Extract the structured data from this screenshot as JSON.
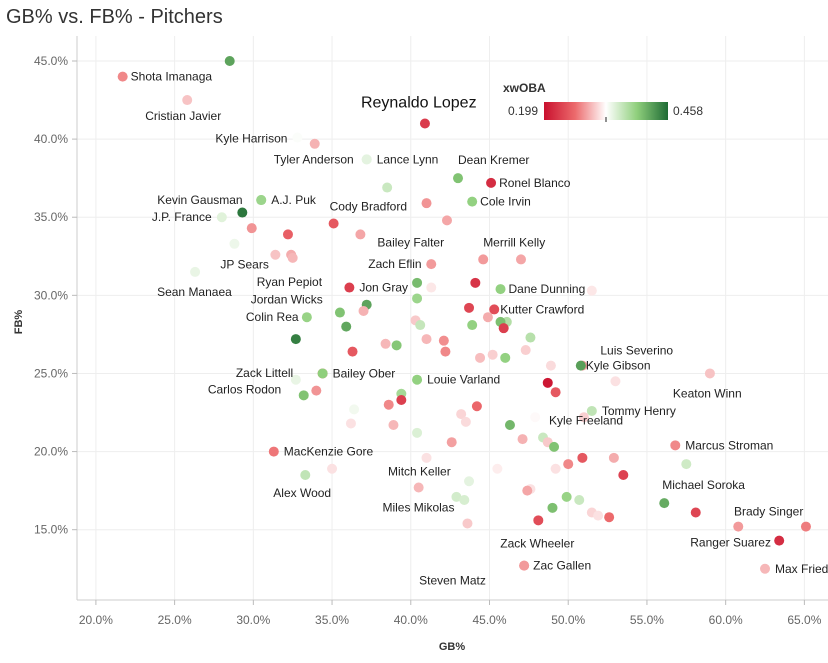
{
  "chart_data": {
    "type": "scatter",
    "title": "GB% vs. FB% - Pitchers",
    "xlabel": "GB%",
    "ylabel": "FB%",
    "xlim": [
      18.8,
      66.5
    ],
    "ylim": [
      10.5,
      46.6
    ],
    "x_ticks": [
      "20.0%",
      "25.0%",
      "30.0%",
      "35.0%",
      "40.0%",
      "45.0%",
      "50.0%",
      "55.0%",
      "60.0%",
      "65.0%"
    ],
    "x_tick_values": [
      20,
      25,
      30,
      35,
      40,
      45,
      50,
      55,
      60,
      65
    ],
    "y_ticks": [
      "15.0%",
      "20.0%",
      "25.0%",
      "30.0%",
      "35.0%",
      "40.0%",
      "45.0%"
    ],
    "y_tick_values": [
      15,
      20,
      25,
      30,
      35,
      40,
      45
    ],
    "legend": {
      "title": "xwOBA",
      "min_label": "0.199",
      "max_label": "0.458",
      "min": 0.199,
      "max": 0.458
    },
    "colors": {
      "low": "#c9102e",
      "mid": "#ffffff",
      "high": "#1e6b34",
      "grid": "#eeeeee"
    },
    "points": [
      {
        "x": 28.5,
        "y": 45.0,
        "t": 0.86,
        "name": "",
        "ldx": 0,
        "ldy": 0
      },
      {
        "x": 21.7,
        "y": 44.0,
        "t": 0.3,
        "name": "Shota Imanaga",
        "ldx": 8,
        "ldy": 4
      },
      {
        "x": 25.8,
        "y": 42.5,
        "t": 0.4,
        "name": "Cristian Javier",
        "ldx": -42,
        "ldy": 20
      },
      {
        "x": 40.9,
        "y": 41.0,
        "t": 0.12,
        "name": "Reynaldo Lopez",
        "ldx": -64,
        "ldy": -16,
        "big": true
      },
      {
        "x": 32.8,
        "y": 40.1,
        "t": 0.51,
        "name": "Kyle Harrison",
        "ldx": -82,
        "ldy": 5
      },
      {
        "x": 33.9,
        "y": 39.7,
        "t": 0.37,
        "name": "",
        "ldx": 0,
        "ldy": 0
      },
      {
        "x": 37.2,
        "y": 38.7,
        "t": 0.56,
        "name": "Tyler Anderson",
        "ldx": -93,
        "ldy": 4
      },
      {
        "x": 37.2,
        "y": 38.7,
        "t": 0.56,
        "name": "Lance Lynn",
        "ldx": 10,
        "ldy": 4
      },
      {
        "x": 43.0,
        "y": 37.5,
        "t": 0.78,
        "name": "Dean Kremer",
        "ldx": 0,
        "ldy": -14
      },
      {
        "x": 45.1,
        "y": 37.2,
        "t": 0.08,
        "name": "Ronel Blanco",
        "ldx": 8,
        "ldy": 4
      },
      {
        "x": 38.5,
        "y": 36.9,
        "t": 0.62,
        "name": "",
        "ldx": 0,
        "ldy": 0
      },
      {
        "x": 30.5,
        "y": 36.1,
        "t": 0.72,
        "name": "Kevin Gausman",
        "ldx": -104,
        "ldy": 4
      },
      {
        "x": 30.5,
        "y": 36.1,
        "t": 0.72,
        "name": "A.J. Puk",
        "ldx": 10,
        "ldy": 4
      },
      {
        "x": 41.0,
        "y": 35.9,
        "t": 0.32,
        "name": "",
        "ldx": 0,
        "ldy": 0
      },
      {
        "x": 43.9,
        "y": 36.0,
        "t": 0.74,
        "name": "Cole Irvin",
        "ldx": 8,
        "ldy": 4
      },
      {
        "x": 29.3,
        "y": 35.3,
        "t": 0.97,
        "name": "",
        "ldx": 0,
        "ldy": 0
      },
      {
        "x": 28.0,
        "y": 35.0,
        "t": 0.57,
        "name": "J.P. France",
        "ldx": -70,
        "ldy": 4
      },
      {
        "x": 35.1,
        "y": 34.6,
        "t": 0.2,
        "name": "Cody Bradford",
        "ldx": -4,
        "ldy": -13
      },
      {
        "x": 29.9,
        "y": 34.3,
        "t": 0.32,
        "name": "",
        "ldx": 0,
        "ldy": 0
      },
      {
        "x": 42.3,
        "y": 34.8,
        "t": 0.35,
        "name": "",
        "ldx": 0,
        "ldy": 0
      },
      {
        "x": 32.2,
        "y": 33.9,
        "t": 0.22,
        "name": "",
        "ldx": 0,
        "ldy": 0
      },
      {
        "x": 36.8,
        "y": 33.9,
        "t": 0.35,
        "name": "Bailey Falter",
        "ldx": 17,
        "ldy": 12
      },
      {
        "x": 28.8,
        "y": 33.3,
        "t": 0.54,
        "name": "",
        "ldx": 0,
        "ldy": 0
      },
      {
        "x": 31.4,
        "y": 32.6,
        "t": 0.4,
        "name": "JP Sears",
        "ldx": -55,
        "ldy": 14
      },
      {
        "x": 32.4,
        "y": 32.6,
        "t": 0.36,
        "name": "",
        "ldx": 0,
        "ldy": 0
      },
      {
        "x": 32.5,
        "y": 32.4,
        "t": 0.38,
        "name": "Ryan Pepiot",
        "ldx": -36,
        "ldy": 28
      },
      {
        "x": 44.6,
        "y": 32.3,
        "t": 0.33,
        "name": "Merrill Kelly",
        "ldx": 0,
        "ldy": -13
      },
      {
        "x": 47.0,
        "y": 32.3,
        "t": 0.35,
        "name": "",
        "ldx": 0,
        "ldy": 0
      },
      {
        "x": 41.3,
        "y": 32.0,
        "t": 0.33,
        "name": "Zach Eflin",
        "ldx": -63,
        "ldy": 4
      },
      {
        "x": 26.3,
        "y": 31.5,
        "t": 0.55,
        "name": "Sean Manaea",
        "ldx": -38,
        "ldy": 24
      },
      {
        "x": 40.4,
        "y": 30.8,
        "t": 0.8,
        "name": "",
        "ldx": 0,
        "ldy": 0
      },
      {
        "x": 44.1,
        "y": 30.8,
        "t": 0.1,
        "name": "",
        "ldx": 0,
        "ldy": 0
      },
      {
        "x": 36.1,
        "y": 30.5,
        "t": 0.13,
        "name": "Jon Gray",
        "ldx": 10,
        "ldy": 4
      },
      {
        "x": 41.3,
        "y": 30.5,
        "t": 0.46,
        "name": "",
        "ldx": 0,
        "ldy": 0
      },
      {
        "x": 45.7,
        "y": 30.4,
        "t": 0.74,
        "name": "Dane Dunning",
        "ldx": 8,
        "ldy": 4
      },
      {
        "x": 51.5,
        "y": 30.3,
        "t": 0.46,
        "name": "",
        "ldx": 0,
        "ldy": 0
      },
      {
        "x": 40.4,
        "y": 29.8,
        "t": 0.72,
        "name": "",
        "ldx": 0,
        "ldy": 0
      },
      {
        "x": 37.2,
        "y": 29.4,
        "t": 0.86,
        "name": "Jordan Wicks",
        "ldx": -116,
        "ldy": -1
      },
      {
        "x": 43.7,
        "y": 29.2,
        "t": 0.15,
        "name": "",
        "ldx": 0,
        "ldy": 0
      },
      {
        "x": 45.3,
        "y": 29.1,
        "t": 0.17,
        "name": "Kutter Crawford",
        "ldx": 6,
        "ldy": 4
      },
      {
        "x": 37.0,
        "y": 29.0,
        "t": 0.37,
        "name": "",
        "ldx": 0,
        "ldy": 0
      },
      {
        "x": 35.5,
        "y": 28.9,
        "t": 0.78,
        "name": "",
        "ldx": 0,
        "ldy": 0
      },
      {
        "x": 33.4,
        "y": 28.6,
        "t": 0.73,
        "name": "Colin Rea",
        "ldx": -61,
        "ldy": 4
      },
      {
        "x": 44.9,
        "y": 28.6,
        "t": 0.36,
        "name": "",
        "ldx": 0,
        "ldy": 0
      },
      {
        "x": 40.3,
        "y": 28.4,
        "t": 0.41,
        "name": "",
        "ldx": 0,
        "ldy": 0
      },
      {
        "x": 46.1,
        "y": 28.3,
        "t": 0.67,
        "name": "",
        "ldx": 0,
        "ldy": 0
      },
      {
        "x": 45.7,
        "y": 28.3,
        "t": 0.79,
        "name": "",
        "ldx": 0,
        "ldy": 0
      },
      {
        "x": 40.6,
        "y": 28.1,
        "t": 0.63,
        "name": "",
        "ldx": 0,
        "ldy": 0
      },
      {
        "x": 43.9,
        "y": 28.1,
        "t": 0.74,
        "name": "",
        "ldx": 0,
        "ldy": 0
      },
      {
        "x": 35.9,
        "y": 28.0,
        "t": 0.85,
        "name": "",
        "ldx": 0,
        "ldy": 0
      },
      {
        "x": 45.9,
        "y": 27.9,
        "t": 0.13,
        "name": "",
        "ldx": 0,
        "ldy": 0
      },
      {
        "x": 47.6,
        "y": 27.3,
        "t": 0.66,
        "name": "",
        "ldx": 0,
        "ldy": 0
      },
      {
        "x": 32.7,
        "y": 27.2,
        "t": 0.95,
        "name": "Zack Littell",
        "ldx": -60,
        "ldy": 38
      },
      {
        "x": 41.0,
        "y": 27.2,
        "t": 0.38,
        "name": "",
        "ldx": 0,
        "ldy": 0
      },
      {
        "x": 42.1,
        "y": 27.1,
        "t": 0.31,
        "name": "",
        "ldx": 0,
        "ldy": 0
      },
      {
        "x": 39.1,
        "y": 26.8,
        "t": 0.77,
        "name": "",
        "ldx": 0,
        "ldy": 0
      },
      {
        "x": 38.4,
        "y": 26.9,
        "t": 0.38,
        "name": "",
        "ldx": 0,
        "ldy": 0
      },
      {
        "x": 47.3,
        "y": 26.5,
        "t": 0.42,
        "name": "",
        "ldx": 0,
        "ldy": 0
      },
      {
        "x": 36.3,
        "y": 26.4,
        "t": 0.2,
        "name": "",
        "ldx": 0,
        "ldy": 0
      },
      {
        "x": 42.2,
        "y": 26.4,
        "t": 0.3,
        "name": "",
        "ldx": 0,
        "ldy": 0
      },
      {
        "x": 45.2,
        "y": 26.2,
        "t": 0.42,
        "name": "",
        "ldx": 0,
        "ldy": 0
      },
      {
        "x": 44.4,
        "y": 26.0,
        "t": 0.39,
        "name": "",
        "ldx": 0,
        "ldy": 0
      },
      {
        "x": 46.0,
        "y": 26.0,
        "t": 0.74,
        "name": "",
        "ldx": 0,
        "ldy": 0
      },
      {
        "x": 50.9,
        "y": 25.5,
        "t": 0.33,
        "name": "Luis Severino",
        "ldx": 18,
        "ldy": -11
      },
      {
        "x": 48.9,
        "y": 25.5,
        "t": 0.44,
        "name": "",
        "ldx": 0,
        "ldy": 0
      },
      {
        "x": 50.8,
        "y": 25.5,
        "t": 0.87,
        "name": "Kyle Gibson",
        "ldx": 5,
        "ldy": 4
      },
      {
        "x": 59.0,
        "y": 25.0,
        "t": 0.4,
        "name": "Keaton Winn",
        "ldx": -37,
        "ldy": 24
      },
      {
        "x": 32.7,
        "y": 24.6,
        "t": 0.55,
        "name": "Carlos Rodon",
        "ldx": -88,
        "ldy": 14
      },
      {
        "x": 34.4,
        "y": 25.0,
        "t": 0.21,
        "name": "",
        "ldx": 0,
        "ldy": 0
      },
      {
        "x": 34.4,
        "y": 25.0,
        "t": 0.75,
        "name": "Bailey Ober",
        "ldx": 10,
        "ldy": 4
      },
      {
        "x": 40.4,
        "y": 24.6,
        "t": 0.74,
        "name": "Louie Varland",
        "ldx": 10,
        "ldy": 4
      },
      {
        "x": 48.7,
        "y": 24.4,
        "t": 0.02,
        "name": "",
        "ldx": 0,
        "ldy": 0
      },
      {
        "x": 53.0,
        "y": 24.5,
        "t": 0.45,
        "name": "",
        "ldx": 0,
        "ldy": 0
      },
      {
        "x": 34.0,
        "y": 23.9,
        "t": 0.32,
        "name": "",
        "ldx": 0,
        "ldy": 0
      },
      {
        "x": 33.2,
        "y": 23.6,
        "t": 0.78,
        "name": "",
        "ldx": 0,
        "ldy": 0
      },
      {
        "x": 39.4,
        "y": 23.7,
        "t": 0.7,
        "name": "",
        "ldx": 0,
        "ldy": 0
      },
      {
        "x": 49.2,
        "y": 23.8,
        "t": 0.2,
        "name": "",
        "ldx": 0,
        "ldy": 0
      },
      {
        "x": 39.4,
        "y": 23.3,
        "t": 0.13,
        "name": "",
        "ldx": 0,
        "ldy": 0
      },
      {
        "x": 38.6,
        "y": 23.0,
        "t": 0.3,
        "name": "",
        "ldx": 0,
        "ldy": 0
      },
      {
        "x": 44.2,
        "y": 22.9,
        "t": 0.24,
        "name": "",
        "ldx": 0,
        "ldy": 0
      },
      {
        "x": 36.4,
        "y": 22.7,
        "t": 0.53,
        "name": "",
        "ldx": 0,
        "ldy": 0
      },
      {
        "x": 51.5,
        "y": 22.6,
        "t": 0.64,
        "name": "Tommy Henry",
        "ldx": 10,
        "ldy": 4
      },
      {
        "x": 43.2,
        "y": 22.4,
        "t": 0.43,
        "name": "",
        "ldx": 0,
        "ldy": 0
      },
      {
        "x": 47.9,
        "y": 22.2,
        "t": 0.49,
        "name": "",
        "ldx": 0,
        "ldy": 0
      },
      {
        "x": 51.0,
        "y": 22.2,
        "t": 0.42,
        "name": "",
        "ldx": 0,
        "ldy": 0
      },
      {
        "x": 38.9,
        "y": 21.7,
        "t": 0.38,
        "name": "",
        "ldx": 0,
        "ldy": 0
      },
      {
        "x": 43.5,
        "y": 21.9,
        "t": 0.44,
        "name": "",
        "ldx": 0,
        "ldy": 0
      },
      {
        "x": 36.2,
        "y": 21.8,
        "t": 0.45,
        "name": "",
        "ldx": 0,
        "ldy": 0
      },
      {
        "x": 46.3,
        "y": 21.7,
        "t": 0.81,
        "name": "",
        "ldx": 0,
        "ldy": 0
      },
      {
        "x": 40.4,
        "y": 21.2,
        "t": 0.58,
        "name": "",
        "ldx": 0,
        "ldy": 0
      },
      {
        "x": 48.4,
        "y": 20.9,
        "t": 0.62,
        "name": "Kyle Freeland",
        "ldx": 6,
        "ldy": -13
      },
      {
        "x": 47.1,
        "y": 20.8,
        "t": 0.37,
        "name": "",
        "ldx": 0,
        "ldy": 0
      },
      {
        "x": 48.7,
        "y": 20.6,
        "t": 0.41,
        "name": "",
        "ldx": 0,
        "ldy": 0
      },
      {
        "x": 42.6,
        "y": 20.6,
        "t": 0.34,
        "name": "",
        "ldx": 0,
        "ldy": 0
      },
      {
        "x": 49.1,
        "y": 20.3,
        "t": 0.78,
        "name": "",
        "ldx": 0,
        "ldy": 0
      },
      {
        "x": 56.8,
        "y": 20.4,
        "t": 0.3,
        "name": "Marcus Stroman",
        "ldx": 10,
        "ldy": 4
      },
      {
        "x": 31.3,
        "y": 20.0,
        "t": 0.27,
        "name": "MacKenzie Gore",
        "ldx": 10,
        "ldy": 4
      },
      {
        "x": 41.0,
        "y": 19.6,
        "t": 0.45,
        "name": "",
        "ldx": 0,
        "ldy": 0
      },
      {
        "x": 50.9,
        "y": 19.6,
        "t": 0.2,
        "name": "",
        "ldx": 0,
        "ldy": 0
      },
      {
        "x": 52.9,
        "y": 19.6,
        "t": 0.36,
        "name": "",
        "ldx": 0,
        "ldy": 0
      },
      {
        "x": 50.0,
        "y": 19.2,
        "t": 0.3,
        "name": "",
        "ldx": 0,
        "ldy": 0
      },
      {
        "x": 57.5,
        "y": 19.2,
        "t": 0.61,
        "name": "",
        "ldx": 0,
        "ldy": 0
      },
      {
        "x": 35.0,
        "y": 18.9,
        "t": 0.45,
        "name": "",
        "ldx": 0,
        "ldy": 0
      },
      {
        "x": 49.2,
        "y": 18.9,
        "t": 0.45,
        "name": "",
        "ldx": 0,
        "ldy": 0
      },
      {
        "x": 45.5,
        "y": 18.9,
        "t": 0.47,
        "name": "",
        "ldx": 0,
        "ldy": 0
      },
      {
        "x": 33.3,
        "y": 18.5,
        "t": 0.64,
        "name": "Alex Wood",
        "ldx": -32,
        "ldy": 22
      },
      {
        "x": 53.5,
        "y": 18.5,
        "t": 0.14,
        "name": "",
        "ldx": 0,
        "ldy": 0
      },
      {
        "x": 43.7,
        "y": 18.1,
        "t": 0.56,
        "name": "Mitch Keller",
        "ldx": -81,
        "ldy": -6
      },
      {
        "x": 40.5,
        "y": 17.7,
        "t": 0.38,
        "name": "",
        "ldx": 0,
        "ldy": 0
      },
      {
        "x": 47.6,
        "y": 17.6,
        "t": 0.45,
        "name": "",
        "ldx": 0,
        "ldy": 0
      },
      {
        "x": 47.4,
        "y": 17.5,
        "t": 0.35,
        "name": "",
        "ldx": 0,
        "ldy": 0
      },
      {
        "x": 42.9,
        "y": 17.1,
        "t": 0.6,
        "name": "",
        "ldx": 0,
        "ldy": 0
      },
      {
        "x": 49.9,
        "y": 17.1,
        "t": 0.73,
        "name": "",
        "ldx": 0,
        "ldy": 0
      },
      {
        "x": 43.4,
        "y": 16.9,
        "t": 0.59,
        "name": "",
        "ldx": 0,
        "ldy": 0
      },
      {
        "x": 50.7,
        "y": 16.9,
        "t": 0.62,
        "name": "",
        "ldx": 0,
        "ldy": 0
      },
      {
        "x": 56.1,
        "y": 16.7,
        "t": 0.84,
        "name": "Michael Soroka",
        "ldx": -2,
        "ldy": -14
      },
      {
        "x": 49.0,
        "y": 16.4,
        "t": 0.79,
        "name": "",
        "ldx": 0,
        "ldy": 0
      },
      {
        "x": 58.1,
        "y": 16.1,
        "t": 0.15,
        "name": "",
        "ldx": 0,
        "ldy": 0
      },
      {
        "x": 51.5,
        "y": 16.1,
        "t": 0.43,
        "name": "",
        "ldx": 0,
        "ldy": 0
      },
      {
        "x": 51.9,
        "y": 15.9,
        "t": 0.45,
        "name": "",
        "ldx": 0,
        "ldy": 0
      },
      {
        "x": 52.6,
        "y": 15.8,
        "t": 0.25,
        "name": "",
        "ldx": 0,
        "ldy": 0
      },
      {
        "x": 48.1,
        "y": 15.6,
        "t": 0.17,
        "name": "Zack Wheeler",
        "ldx": -38,
        "ldy": 27
      },
      {
        "x": 43.6,
        "y": 15.4,
        "t": 0.41,
        "name": "Miles Mikolas",
        "ldx": -85,
        "ldy": -12
      },
      {
        "x": 60.8,
        "y": 15.2,
        "t": 0.33,
        "name": "Ranger Suarez",
        "ldx": -48,
        "ldy": 20
      },
      {
        "x": 65.1,
        "y": 15.2,
        "t": 0.28,
        "name": "Brady Singer",
        "ldx": -72,
        "ldy": -11
      },
      {
        "x": 63.4,
        "y": 14.3,
        "t": 0.08,
        "name": "",
        "ldx": 0,
        "ldy": 0
      },
      {
        "x": 47.2,
        "y": 12.7,
        "t": 0.33,
        "name": "Zac Gallen",
        "ldx": 9,
        "ldy": 4
      },
      {
        "x": 47.2,
        "y": 12.7,
        "t": 0.33,
        "name": "Steven Matz",
        "ldx": -105,
        "ldy": 19
      },
      {
        "x": 62.5,
        "y": 12.5,
        "t": 0.38,
        "name": "Max Fried",
        "ldx": 10,
        "ldy": 4
      }
    ]
  }
}
